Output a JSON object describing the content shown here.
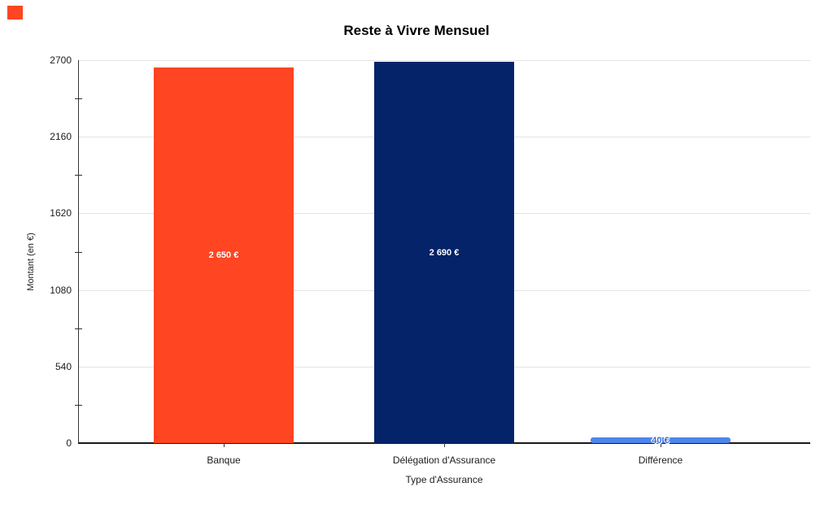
{
  "marker": {
    "name": "red-marker",
    "color": "#FF4521"
  },
  "chart_data": {
    "type": "bar",
    "title": "Reste à Vivre Mensuel",
    "xlabel": "Type d'Assurance",
    "ylabel": "Montant (en €)",
    "categories": [
      "Banque",
      "Délégation d'Assurance",
      "Différence"
    ],
    "values": [
      2650,
      2690,
      40
    ],
    "bar_colors": [
      "#FF4521",
      "#052368",
      "#4E86EC"
    ],
    "bar_labels": [
      "2 650 €",
      "2 690 €",
      "40 €"
    ],
    "bar_label_colors": [
      "#FFFFFF",
      "#FFFFFF",
      "#3A6BD0"
    ],
    "y_ticks": [
      "0",
      "540",
      "1080",
      "1620",
      "2160",
      "2700"
    ],
    "y_tick_values": [
      0,
      540,
      1080,
      1620,
      2160,
      2700
    ],
    "ylim": [
      0,
      2700
    ],
    "grid": true,
    "legend": "none",
    "gridline_color": "#E3E3E3",
    "axis_color": "#333333",
    "background_color": "#FFFFFF"
  }
}
